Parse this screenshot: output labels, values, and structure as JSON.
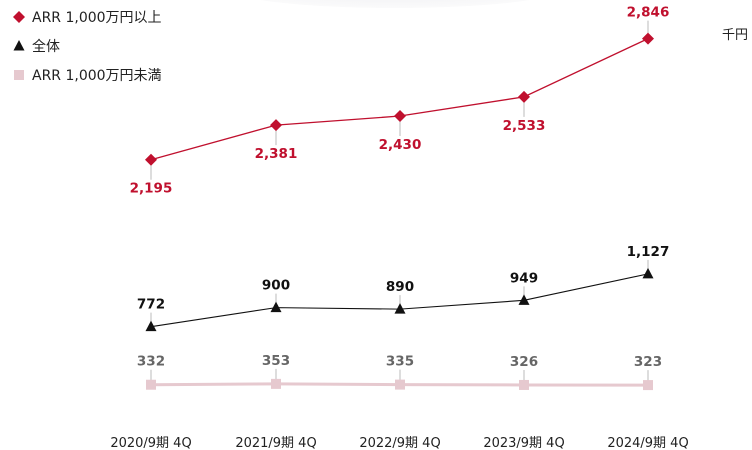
{
  "chart_data": {
    "type": "line",
    "unit_label": "千円",
    "categories": [
      "2020/9期 4Q",
      "2021/9期 4Q",
      "2022/9期 4Q",
      "2023/9期 4Q",
      "2024/9期 4Q"
    ],
    "series": [
      {
        "name": "ARR 1,000万円以上",
        "values": [
          2195,
          2381,
          2430,
          2533,
          2846
        ],
        "labels": [
          "2,195",
          "2,381",
          "2,430",
          "2,533",
          "2,846"
        ],
        "color": "#c0102e",
        "marker": "diamond"
      },
      {
        "name": "全体",
        "values": [
          772,
          900,
          890,
          949,
          1127
        ],
        "labels": [
          "772",
          "900",
          "890",
          "949",
          "1,127"
        ],
        "color": "#111111",
        "marker": "triangle"
      },
      {
        "name": "ARR 1,000万円未満",
        "values": [
          332,
          353,
          335,
          326,
          323
        ],
        "labels": [
          "332",
          "353",
          "335",
          "326",
          "323"
        ],
        "color": "#e6c9cf",
        "marker": "square"
      }
    ],
    "grid": false,
    "legend_position": "top-left"
  }
}
